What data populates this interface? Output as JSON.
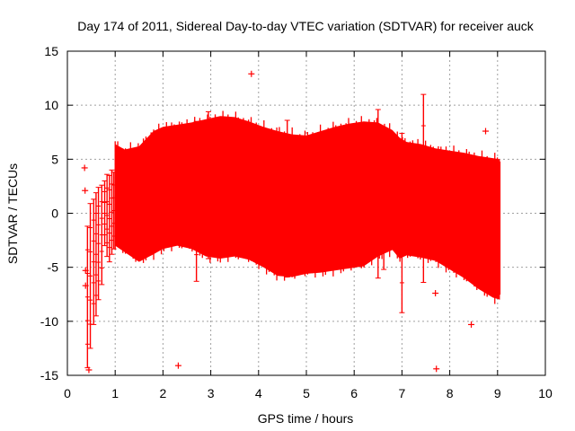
{
  "chart_data": {
    "type": "scatter",
    "title": "Day 174 of 2011, Sidereal Day-to-day VTEC variation (SDTVAR) for receiver auck",
    "xlabel": "GPS time / hours",
    "ylabel": "SDTVAR / TECUs",
    "xlim": [
      0,
      10
    ],
    "ylim": [
      -15,
      15
    ],
    "xticks": [
      "0",
      "1",
      "2",
      "3",
      "4",
      "5",
      "6",
      "7",
      "8",
      "9",
      "10"
    ],
    "yticks": [
      "-15",
      "-10",
      "-5",
      "0",
      "5",
      "10",
      "15"
    ],
    "grid": true,
    "series_color": "#ff0000",
    "band": {
      "description": "dense scatter envelope of samples",
      "x": [
        1.0,
        1.2,
        1.5,
        1.8,
        2.0,
        2.3,
        2.6,
        2.9,
        3.2,
        3.5,
        3.8,
        4.1,
        4.4,
        4.7,
        5.0,
        5.3,
        5.6,
        5.9,
        6.2,
        6.5,
        6.8,
        6.95,
        7.1,
        7.4,
        7.7,
        8.0,
        8.3,
        8.6,
        8.9,
        9.05
      ],
      "upper": [
        6.4,
        5.9,
        6.2,
        7.6,
        8.0,
        8.2,
        8.4,
        8.7,
        9.0,
        8.9,
        8.5,
        8.0,
        7.6,
        7.3,
        7.2,
        7.6,
        8.0,
        8.3,
        8.5,
        8.4,
        7.7,
        7.0,
        6.6,
        6.4,
        6.0,
        5.8,
        5.6,
        5.3,
        5.1,
        5.0
      ],
      "lower": [
        -3.0,
        -3.6,
        -4.5,
        -3.8,
        -3.3,
        -3.0,
        -3.3,
        -4.0,
        -4.2,
        -4.0,
        -4.3,
        -5.0,
        -5.8,
        -5.9,
        -5.6,
        -5.5,
        -5.3,
        -5.1,
        -4.9,
        -4.0,
        -3.4,
        -4.2,
        -3.9,
        -4.1,
        -4.4,
        -5.2,
        -6.0,
        -7.0,
        -7.8,
        -8.0
      ]
    },
    "early_strands": [
      {
        "x": 0.42,
        "ymin": -14.3,
        "ymax": -1.2
      },
      {
        "x": 0.48,
        "ymin": -12.5,
        "ymax": 0.9
      },
      {
        "x": 0.55,
        "ymin": -10.3,
        "ymax": 1.3
      },
      {
        "x": 0.6,
        "ymin": -9.5,
        "ymax": 1.9
      },
      {
        "x": 0.65,
        "ymin": -8.0,
        "ymax": 2.4
      },
      {
        "x": 0.72,
        "ymin": -6.6,
        "ymax": 2.6
      },
      {
        "x": 0.78,
        "ymin": -3.0,
        "ymax": 3.0
      },
      {
        "x": 0.83,
        "ymin": -4.0,
        "ymax": 3.6
      },
      {
        "x": 0.88,
        "ymin": -4.5,
        "ymax": 3.5
      },
      {
        "x": 0.93,
        "ymin": -3.8,
        "ymax": 4.0
      },
      {
        "x": 0.97,
        "ymin": -3.3,
        "ymax": 3.8
      }
    ],
    "spikes": [
      {
        "x": 2.7,
        "ymin": -6.3,
        "ymax": 8.5
      },
      {
        "x": 2.95,
        "ymin": -4.2,
        "ymax": 9.4
      },
      {
        "x": 4.6,
        "ymin": -5.9,
        "ymax": 8.6
      },
      {
        "x": 6.5,
        "ymin": -6.0,
        "ymax": 9.6
      },
      {
        "x": 6.62,
        "ymin": -5.2,
        "ymax": 7.6
      },
      {
        "x": 7.0,
        "ymin": -9.2,
        "ymax": 7.4
      },
      {
        "x": 7.45,
        "ymin": -6.4,
        "ymax": 11.0
      }
    ],
    "outliers": [
      {
        "x": 0.36,
        "y": 4.2
      },
      {
        "x": 0.37,
        "y": 2.1
      },
      {
        "x": 0.38,
        "y": -5.3
      },
      {
        "x": 0.38,
        "y": -6.7
      },
      {
        "x": 0.45,
        "y": -14.5
      },
      {
        "x": 2.32,
        "y": -14.1
      },
      {
        "x": 3.85,
        "y": 12.9
      },
      {
        "x": 7.7,
        "y": -7.4
      },
      {
        "x": 7.72,
        "y": -14.4
      },
      {
        "x": 8.45,
        "y": -10.3
      },
      {
        "x": 8.75,
        "y": 7.6
      }
    ]
  }
}
